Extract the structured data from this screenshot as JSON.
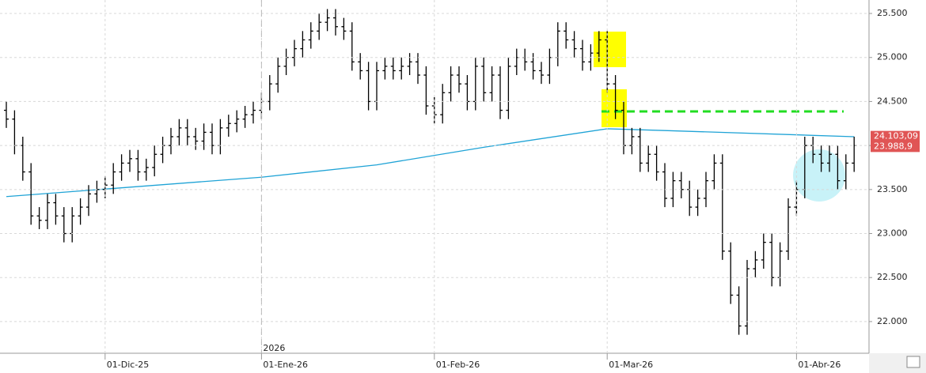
{
  "chart_data": {
    "type": "ohlc",
    "categories": [
      null,
      null,
      null,
      null,
      null,
      null,
      null,
      null,
      null,
      null,
      null,
      null,
      "01-Dic-25",
      null,
      null,
      null,
      null,
      null,
      null,
      null,
      null,
      null,
      null,
      null,
      null,
      null,
      null,
      null,
      null,
      null,
      null,
      "01-Ene-26",
      null,
      null,
      null,
      null,
      null,
      null,
      null,
      null,
      null,
      null,
      null,
      null,
      null,
      null,
      null,
      null,
      null,
      null,
      null,
      null,
      "01-Feb-26",
      null,
      null,
      null,
      null,
      null,
      null,
      null,
      null,
      null,
      null,
      null,
      null,
      null,
      null,
      null,
      null,
      null,
      null,
      null,
      null,
      "01-Mar-26",
      null,
      null,
      null,
      null,
      null,
      null,
      null,
      null,
      null,
      null,
      null,
      null,
      null,
      null,
      null,
      null,
      null,
      null,
      null,
      null,
      null,
      null,
      "01-Abr-26",
      null,
      null,
      null,
      null,
      null,
      null,
      null
    ],
    "year_label": "2026",
    "year_label_index": 31,
    "open": [
      24400,
      24300,
      24000,
      23700,
      23200,
      23150,
      23350,
      23200,
      23000,
      23200,
      23300,
      23450,
      23500,
      23550,
      23700,
      23800,
      23850,
      23700,
      23750,
      23900,
      24000,
      24100,
      24200,
      24100,
      24050,
      24150,
      24000,
      24200,
      24250,
      24300,
      24350,
      24400,
      24500,
      24700,
      24900,
      25000,
      25100,
      25200,
      25300,
      25400,
      25450,
      25350,
      25300,
      24950,
      24850,
      24500,
      24850,
      24900,
      24850,
      24900,
      24950,
      24800,
      24450,
      24350,
      24600,
      24800,
      24700,
      24500,
      24900,
      24600,
      24800,
      24400,
      24900,
      25000,
      24950,
      24850,
      24800,
      25000,
      25300,
      25200,
      25100,
      24950,
      25050,
      25200,
      24700,
      24400,
      24000,
      24100,
      23800,
      23900,
      23700,
      23400,
      23600,
      23500,
      23300,
      23400,
      23600,
      23800,
      22800,
      22300,
      21950,
      22600,
      22700,
      22900,
      22500,
      22800,
      23300,
      23500,
      24000,
      23900,
      23800,
      23900,
      23600,
      23800
    ],
    "high": [
      24500,
      24400,
      24100,
      23800,
      23300,
      23450,
      23450,
      23300,
      23300,
      23400,
      23550,
      23600,
      23650,
      23800,
      23900,
      23950,
      23950,
      23850,
      24000,
      24100,
      24200,
      24300,
      24300,
      24200,
      24250,
      24250,
      24300,
      24350,
      24400,
      24450,
      24500,
      24600,
      24800,
      25000,
      25100,
      25200,
      25300,
      25400,
      25500,
      25550,
      25550,
      25450,
      25400,
      25050,
      24950,
      24950,
      25000,
      25000,
      25000,
      25050,
      25050,
      24900,
      24550,
      24700,
      24900,
      24900,
      24800,
      25000,
      25000,
      24900,
      24900,
      25000,
      25100,
      25100,
      25050,
      24950,
      25100,
      25400,
      25400,
      25300,
      25200,
      25150,
      25300,
      25300,
      24800,
      24500,
      24200,
      24200,
      24000,
      24000,
      23800,
      23700,
      23700,
      23600,
      23500,
      23700,
      23900,
      23900,
      22900,
      22400,
      22700,
      22800,
      23000,
      23000,
      22900,
      23400,
      23600,
      24100,
      24100,
      24000,
      24000,
      24000,
      23900,
      24100
    ],
    "low": [
      24200,
      23900,
      23600,
      23100,
      23050,
      23050,
      23100,
      22900,
      22900,
      23100,
      23200,
      23350,
      23400,
      23450,
      23600,
      23700,
      23600,
      23600,
      23650,
      23800,
      23900,
      24000,
      24000,
      23950,
      23950,
      23900,
      23900,
      24100,
      24150,
      24200,
      24250,
      24300,
      24400,
      24600,
      24800,
      24900,
      25000,
      25100,
      25200,
      25300,
      25250,
      25200,
      24850,
      24750,
      24400,
      24400,
      24750,
      24750,
      24750,
      24800,
      24700,
      24350,
      24250,
      24250,
      24500,
      24600,
      24400,
      24400,
      24500,
      24500,
      24300,
      24300,
      24800,
      24850,
      24750,
      24700,
      24700,
      24900,
      25100,
      25000,
      24850,
      24850,
      24950,
      24600,
      24300,
      23900,
      23900,
      23700,
      23700,
      23600,
      23300,
      23300,
      23400,
      23200,
      23200,
      23300,
      23500,
      22700,
      22200,
      21850,
      21850,
      22500,
      22600,
      22400,
      22400,
      22700,
      23200,
      23400,
      23800,
      23700,
      23700,
      23500,
      23500,
      23700
    ],
    "close": [
      24300,
      24000,
      23700,
      23200,
      23150,
      23350,
      23200,
      23000,
      23200,
      23300,
      23450,
      23500,
      23550,
      23700,
      23800,
      23850,
      23700,
      23750,
      23900,
      24000,
      24100,
      24200,
      24100,
      24050,
      24150,
      24000,
      24200,
      24250,
      24300,
      24350,
      24400,
      24500,
      24700,
      24900,
      25000,
      25100,
      25200,
      25300,
      25400,
      25450,
      25350,
      25300,
      24950,
      24850,
      24500,
      24850,
      24900,
      24850,
      24900,
      24950,
      24800,
      24450,
      24350,
      24600,
      24800,
      24700,
      24500,
      24900,
      24600,
      24800,
      24400,
      24900,
      25000,
      24950,
      24850,
      24800,
      25000,
      25300,
      25200,
      25100,
      24950,
      25050,
      25200,
      24700,
      24400,
      24000,
      24100,
      23800,
      23900,
      23700,
      23400,
      23600,
      23500,
      23300,
      23400,
      23600,
      23800,
      22800,
      22300,
      21950,
      22600,
      22700,
      22900,
      22500,
      22800,
      23300,
      23500,
      24000,
      23900,
      23800,
      23900,
      23600,
      23800,
      24000
    ],
    "color": "#000000",
    "moving_average": {
      "color": "#1fa3d6",
      "x": [
        0,
        31,
        45,
        58,
        73,
        80,
        103
      ],
      "values": [
        23420,
        23640,
        23780,
        23980,
        24190,
        24170,
        24100
      ]
    },
    "ylim": [
      21640,
      25653
    ],
    "yticks": [
      {
        "value": 22000,
        "label": "22.000"
      },
      {
        "value": 22500,
        "label": "22.500"
      },
      {
        "value": 23000,
        "label": "23.000"
      },
      {
        "value": 23500,
        "label": "23.500"
      },
      {
        "value": 24000,
        "label": "24.000"
      },
      {
        "value": 24500,
        "label": "24.500"
      },
      {
        "value": 25000,
        "label": "25.000"
      },
      {
        "value": 25500,
        "label": "25.500"
      }
    ],
    "price_labels": [
      {
        "value": 24103.09,
        "label": "24.103,09"
      },
      {
        "value": 23988.9,
        "label": "23.988,9"
      }
    ],
    "price_label_color": "#e05555",
    "grid": true
  }
}
